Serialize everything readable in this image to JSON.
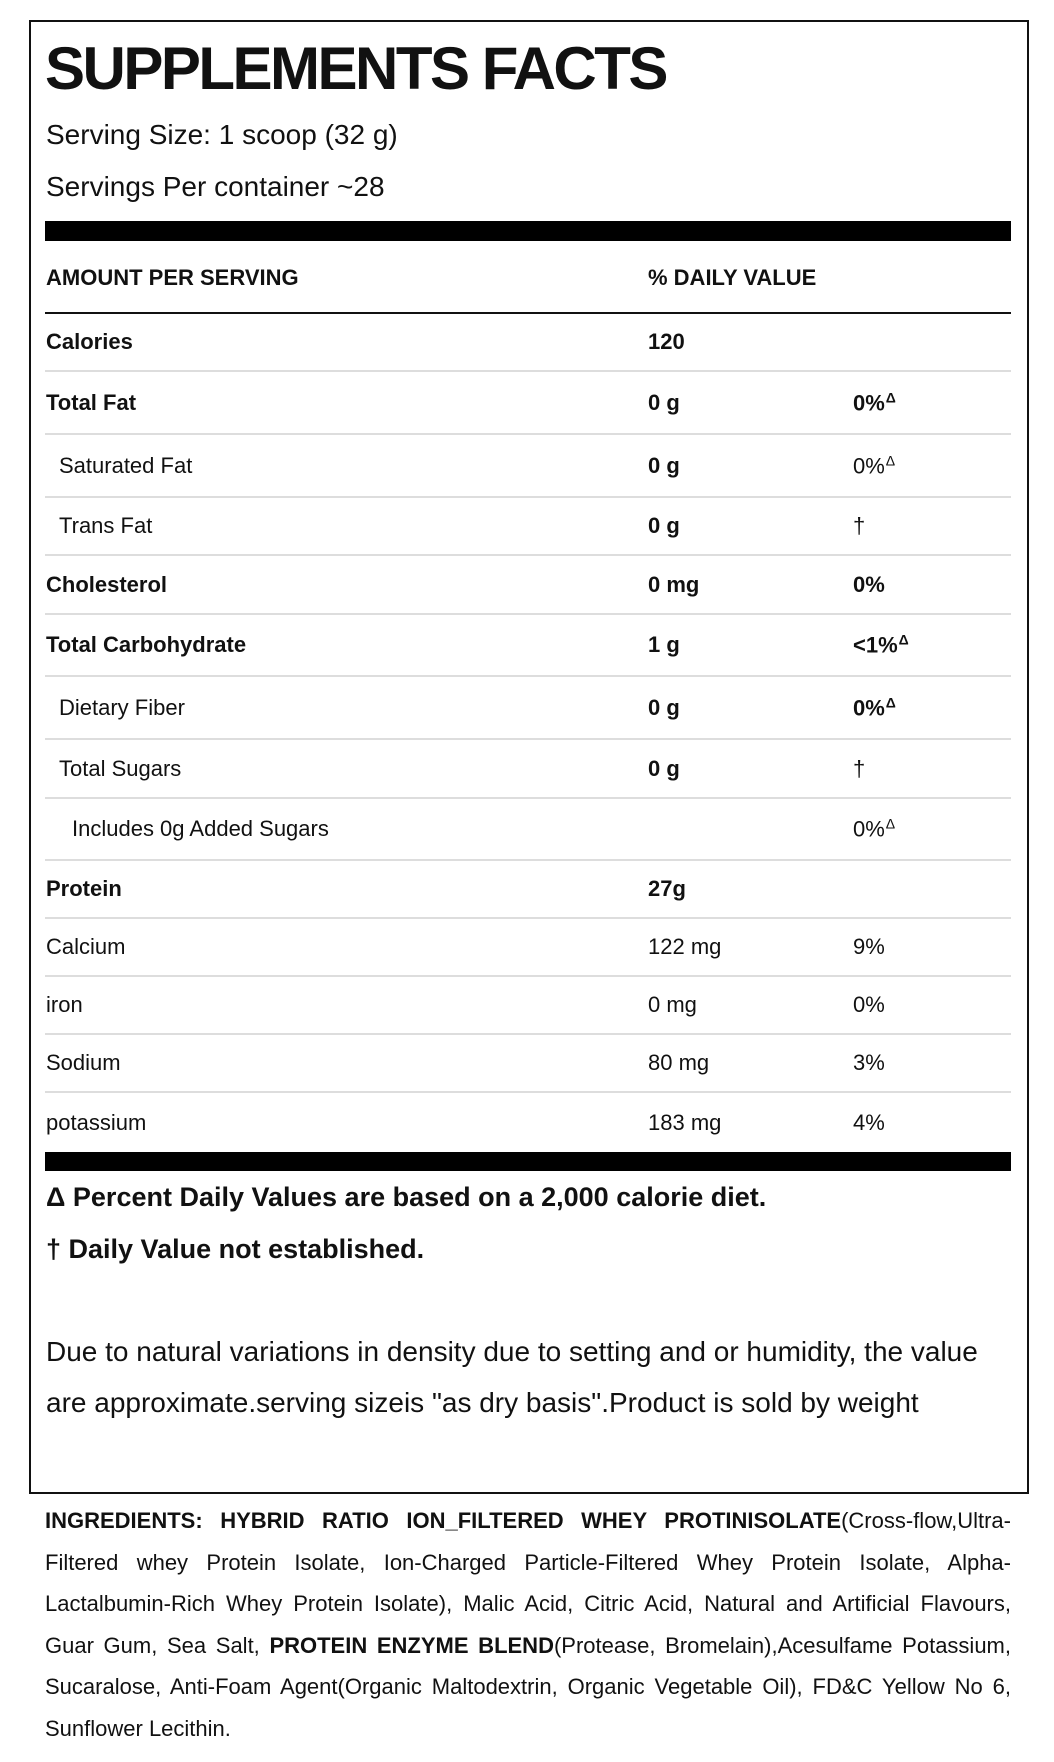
{
  "title": "SUPPLEMENTS FACTS",
  "serving_size": "Serving Size: 1 scoop (32 g)",
  "servings_per_container": "Servings Per container ~28",
  "header": {
    "amount": "AMOUNT PER SERVING",
    "daily_value": "% DAILY VALUE"
  },
  "rows": [
    {
      "label": "Calories",
      "amount": "120",
      "dv": "",
      "sup": ""
    },
    {
      "label": "Total Fat",
      "amount": "0 g",
      "dv": "0%",
      "sup": "Δ"
    },
    {
      "label": "Saturated Fat",
      "amount": "0 g",
      "dv": "0%",
      "sup": "Δ"
    },
    {
      "label": "Trans Fat",
      "amount": "0 g",
      "dv": "†",
      "sup": ""
    },
    {
      "label": "Cholesterol",
      "amount": "0 mg",
      "dv": "0%",
      "sup": ""
    },
    {
      "label": "Total Carbohydrate",
      "amount": "1 g",
      "dv": "<1%",
      "sup": "Δ"
    },
    {
      "label": "Dietary Fiber",
      "amount": "0 g",
      "dv": "0%",
      "sup": "Δ"
    },
    {
      "label": "Total Sugars",
      "amount": "0 g",
      "dv": "†",
      "sup": ""
    },
    {
      "label": "Includes 0g Added Sugars",
      "amount": "",
      "dv": "0%",
      "sup": "Δ"
    },
    {
      "label": "Protein",
      "amount": "27g",
      "dv": "",
      "sup": ""
    },
    {
      "label": "Calcium",
      "amount": "122 mg",
      "dv": "9%",
      "sup": ""
    },
    {
      "label": "iron",
      "amount": "0 mg",
      "dv": "0%",
      "sup": ""
    },
    {
      "label": "Sodium",
      "amount": "80 mg",
      "dv": "3%",
      "sup": ""
    },
    {
      "label": "potassium",
      "amount": "183 mg",
      "dv": "4%",
      "sup": ""
    }
  ],
  "footnotes": {
    "delta": "Δ Percent Daily Values are based on a 2,000 calorie diet.",
    "dagger": "† Daily Value not established."
  },
  "disclaimer": "Due to natural variations in density due to setting and or humidity, the value are approximate.serving sizeis \"as dry basis\".Product is sold by weight",
  "ingredients": {
    "label": "INGREDIENTS: HYBRID RATIO ION_FILTERED WHEY PROTINISOLATE",
    "part1": "(Cross-flow,Ultra-Filtered whey Protein Isolate, Ion-Charged Particle-Filtered Whey Protein Isolate, Alpha-Lactalbumin-Rich Whey Protein Isolate), Malic Acid, Citric Acid, Natural and Artificial Flavours, Guar Gum, Sea Salt, ",
    "blend": "PROTEIN ENZYME BLEND",
    "part2": "(Protease, Bromelain),Acesulfame Potassium, Sucaralose, Anti-Foam Agent(Organic Maltodextrin, Organic Vegetable Oil), FD&C Yellow No 6, Sunflower Lecithin."
  }
}
